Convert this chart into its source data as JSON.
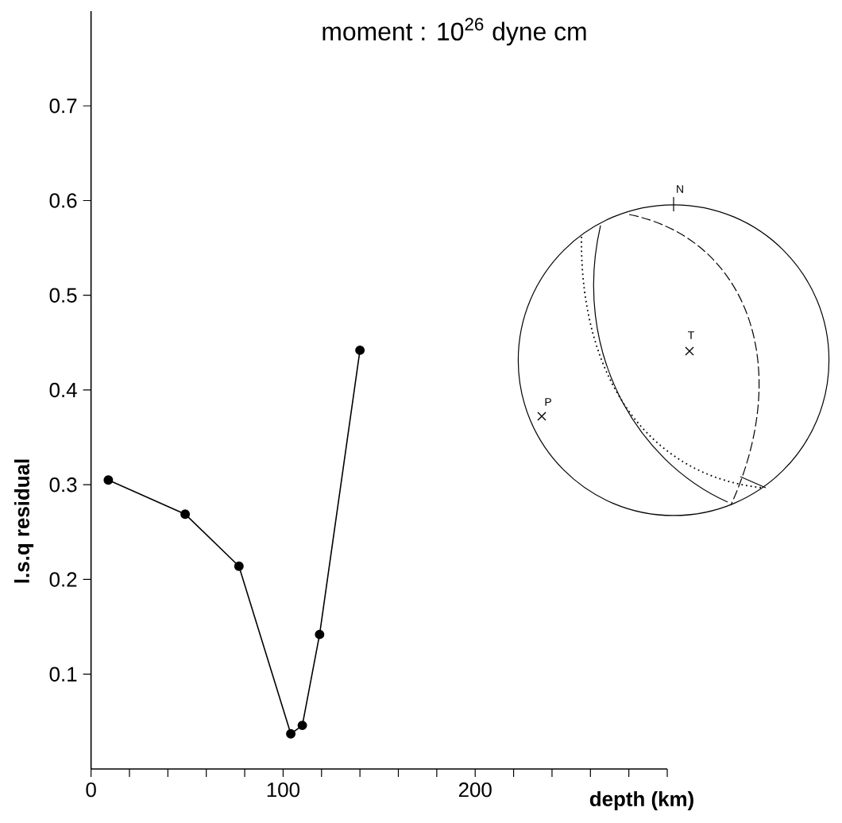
{
  "chart_data": {
    "type": "line",
    "title": "moment : 10$^{26}$ dyne cm",
    "xlabel": "depth (km)",
    "ylabel": "l.s.q residual",
    "x": [
      9,
      49,
      77,
      104,
      110,
      119,
      140
    ],
    "series": [
      {
        "color": "#000000",
        "values": [
          0.305,
          0.269,
          0.214,
          0.037,
          0.046,
          0.142,
          0.442
        ]
      }
    ],
    "xlim": [
      0,
      300
    ],
    "ylim": [
      0,
      0.8
    ],
    "xticks": [
      0,
      {
        "value": 20,
        "label": null
      },
      {
        "value": 40,
        "label": null
      },
      {
        "value": 60,
        "label": null
      },
      {
        "value": 80,
        "label": null
      },
      100,
      {
        "value": 120,
        "label": null
      },
      {
        "value": 140,
        "label": null
      },
      {
        "value": 160,
        "label": null
      },
      {
        "value": 180,
        "label": null
      },
      200,
      {
        "value": 220,
        "label": null
      },
      {
        "value": 240,
        "label": null
      },
      {
        "value": 260,
        "label": null
      },
      {
        "value": 280,
        "label": null
      },
      {
        "value": 300,
        "label": null
      }
    ],
    "yticks": [
      0.1,
      0.2,
      0.3,
      0.4,
      0.5,
      0.6,
      0.7
    ],
    "annotations": [
      "N",
      "T",
      "P"
    ],
    "marker": "circle",
    "line_style": "solid",
    "grid": false,
    "legend": false
  }
}
